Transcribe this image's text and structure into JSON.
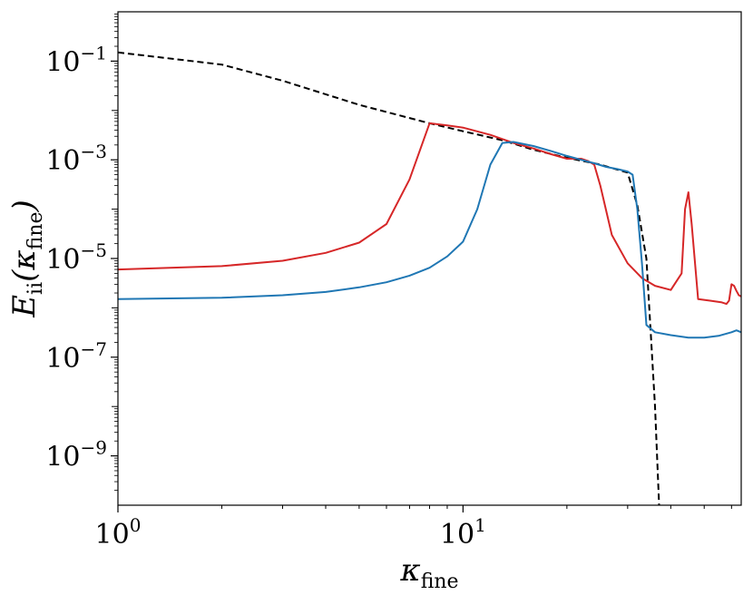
{
  "chart_data": {
    "type": "line",
    "title": "",
    "xlabel": "κ_fine",
    "ylabel": "E_ii(κ_fine)",
    "xscale": "log",
    "yscale": "log",
    "xlim": [
      1,
      64
    ],
    "ylim": [
      1e-10,
      1
    ],
    "grid": false,
    "legend": "none",
    "x_ticks": [
      {
        "value": 1,
        "label_base": "10",
        "label_exp": "0"
      },
      {
        "value": 10,
        "label_base": "10",
        "label_exp": "1"
      }
    ],
    "y_ticks": [
      {
        "value": 1e-09,
        "label_base": "10",
        "label_exp": "−9"
      },
      {
        "value": 1e-07,
        "label_base": "10",
        "label_exp": "−7"
      },
      {
        "value": 1e-05,
        "label_base": "10",
        "label_exp": "−5"
      },
      {
        "value": 0.001,
        "label_base": "10",
        "label_exp": "−3"
      },
      {
        "value": 0.1,
        "label_base": "10",
        "label_exp": "−1"
      }
    ],
    "series": [
      {
        "color": "#000000",
        "style": "dashed",
        "x": [
          1,
          2,
          3,
          5,
          8,
          10,
          13,
          16,
          20,
          25,
          30,
          32,
          34,
          36,
          37
        ],
        "y": [
          0.15,
          0.085,
          0.04,
          0.013,
          0.0055,
          0.0038,
          0.0025,
          0.0016,
          0.0011,
          0.0008,
          0.00055,
          0.00012,
          1e-05,
          1e-08,
          1e-10
        ]
      },
      {
        "color": "#d62728",
        "style": "solid",
        "x": [
          1,
          2,
          3,
          4,
          5,
          6,
          7,
          8,
          9,
          10,
          12,
          14,
          16,
          18,
          20,
          22,
          23,
          24,
          25,
          27,
          30,
          33,
          36,
          40,
          43,
          44,
          45,
          46,
          48,
          52,
          56,
          58,
          59,
          60,
          61,
          62,
          63,
          64
        ],
        "y": [
          6e-06,
          7e-06,
          9e-06,
          1.3e-05,
          2.1e-05,
          5e-05,
          0.0004,
          0.0055,
          0.005,
          0.0045,
          0.0032,
          0.0022,
          0.0017,
          0.0013,
          0.00105,
          0.00105,
          0.00095,
          0.0008,
          0.0003,
          3e-05,
          8e-06,
          4e-06,
          2.8e-06,
          2.3e-06,
          5e-06,
          0.0001,
          0.00022,
          5e-05,
          1.5e-06,
          1.4e-06,
          1.3e-06,
          1.2e-06,
          1.4e-06,
          3e-06,
          2.8e-06,
          2.2e-06,
          1.8e-06,
          1.7e-06
        ]
      },
      {
        "color": "#1f77b4",
        "style": "solid",
        "x": [
          1,
          2,
          3,
          4,
          5,
          6,
          7,
          8,
          9,
          10,
          11,
          12,
          13,
          14,
          16,
          18,
          20,
          22,
          24,
          26,
          28,
          30,
          31,
          32,
          33,
          34,
          36,
          40,
          45,
          50,
          55,
          60,
          62,
          64
        ],
        "y": [
          1.5e-06,
          1.6e-06,
          1.8e-06,
          2.1e-06,
          2.6e-06,
          3.3e-06,
          4.5e-06,
          6.5e-06,
          1.1e-05,
          2.2e-05,
          0.0001,
          0.0008,
          0.0022,
          0.0023,
          0.0019,
          0.0015,
          0.0012,
          0.001,
          0.00085,
          0.00072,
          0.00065,
          0.00058,
          0.0005,
          0.0001,
          8e-06,
          4.5e-07,
          3.2e-07,
          2.8e-07,
          2.5e-07,
          2.5e-07,
          2.7e-07,
          3.2e-07,
          3.5e-07,
          3.2e-07
        ]
      }
    ]
  }
}
